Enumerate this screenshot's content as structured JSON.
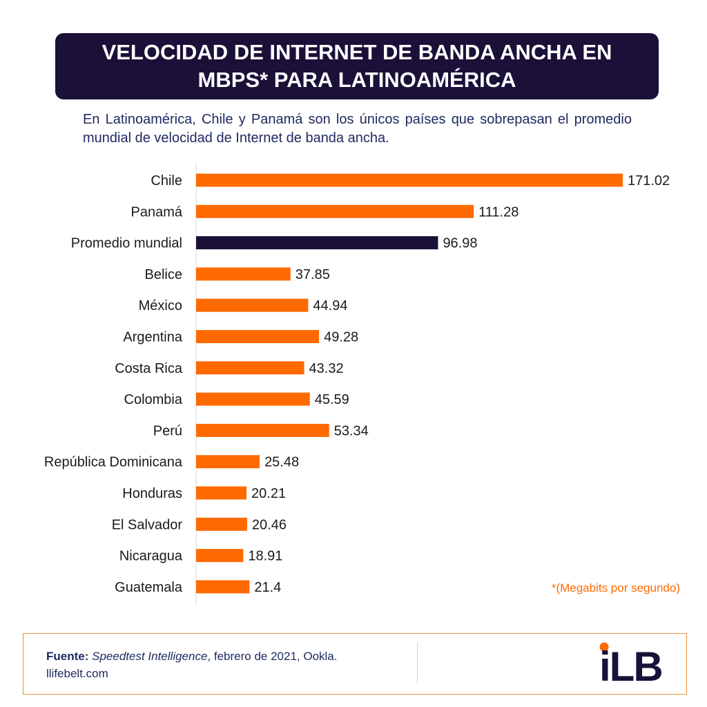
{
  "header": {
    "title": "VELOCIDAD DE INTERNET DE BANDA ANCHA EN MBPS* PARA LATINOAMÉRICA",
    "subtitle": "En Latinoamérica, Chile y Panamá son los únicos países que sobrepasan el promedio mundial de velocidad de Internet de banda ancha."
  },
  "chart_data": {
    "type": "bar",
    "orientation": "horizontal",
    "categories": [
      "Chile",
      "Panamá",
      "Promedio mundial",
      "Belice",
      "México",
      "Argentina",
      "Costa Rica",
      "Colombia",
      "Perú",
      "República Dominicana",
      "Honduras",
      "El Salvador",
      "Nicaragua",
      "Guatemala"
    ],
    "values": [
      171.02,
      111.28,
      96.98,
      37.85,
      44.94,
      49.28,
      43.32,
      45.59,
      53.34,
      25.48,
      20.21,
      20.46,
      18.91,
      21.4
    ],
    "value_labels": [
      "171.02",
      "111.28",
      "96.98",
      "37.85",
      "44.94",
      "49.28",
      "43.32",
      "45.59",
      "53.34",
      "25.48",
      "20.21",
      "20.46",
      "18.91",
      "21.4"
    ],
    "highlight_category": "Promedio mundial",
    "colors": {
      "bar": "#ff6a00",
      "highlight": "#1a1038",
      "axis": "#d9d9d9",
      "label": "#1a1a1a"
    },
    "xlim": [
      0,
      175
    ],
    "grid": false,
    "legend": "none"
  },
  "note": "*(Megabits por segundo)",
  "footer": {
    "source_label": "Fuente:",
    "source_name": "Speedtest Intelligence",
    "source_rest": ", febrero de 2021, Ookla.",
    "website": "llifebelt.com",
    "logo_text": "iLB",
    "logo_colors": {
      "dot": "#ff6a00",
      "letters": "#1a1038"
    }
  }
}
